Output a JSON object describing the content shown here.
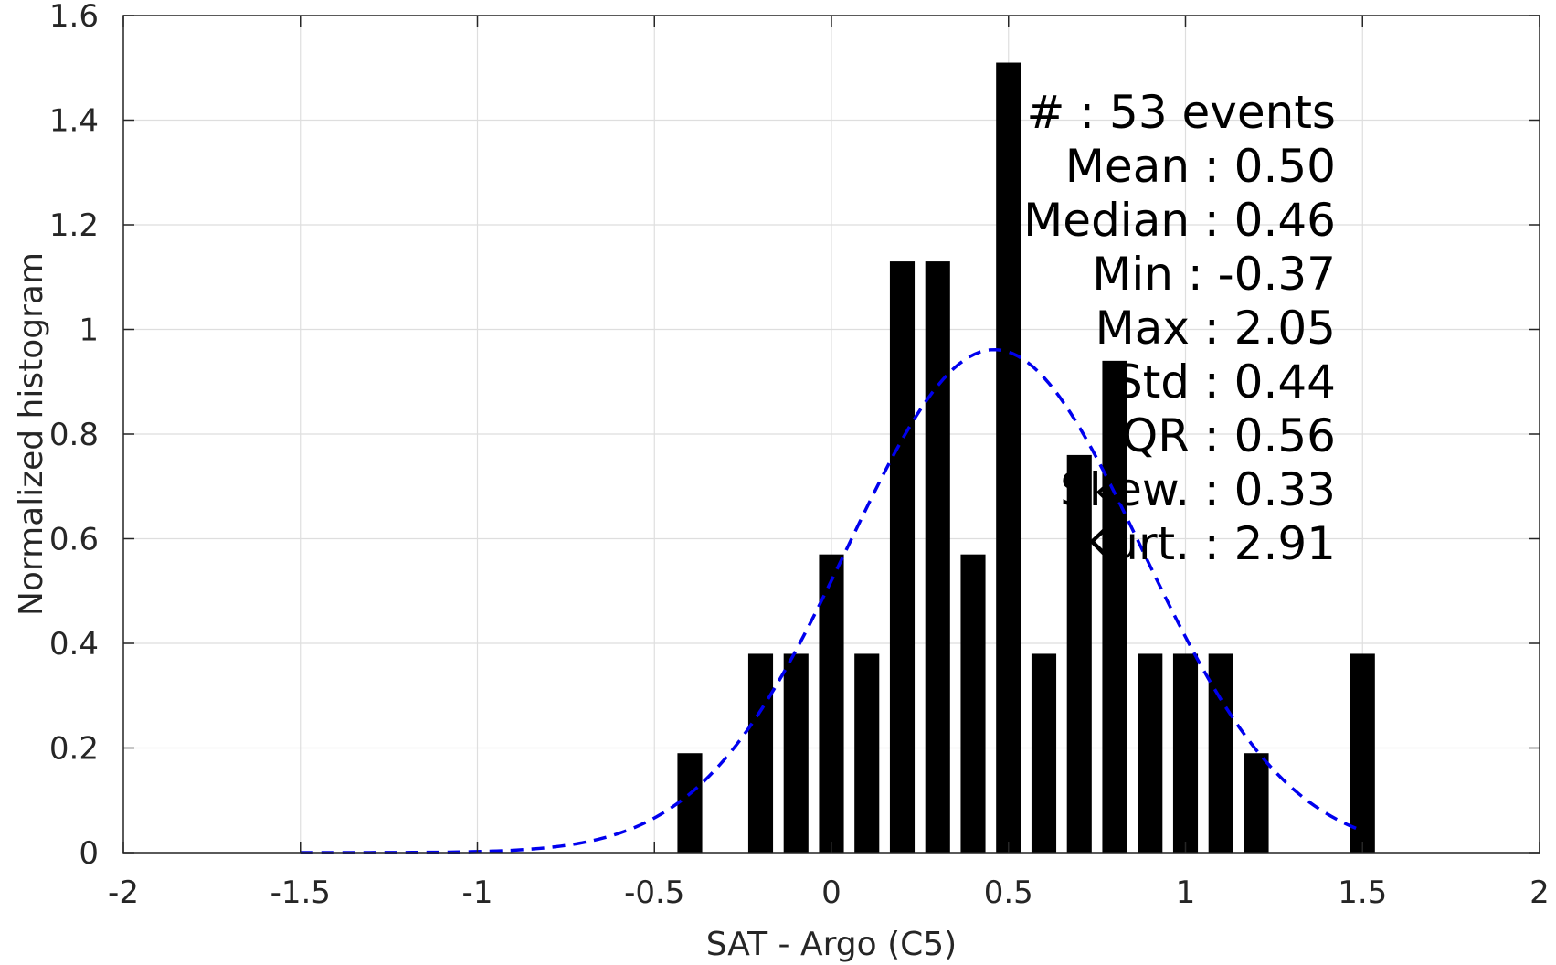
{
  "chart_data": {
    "type": "bar",
    "xlabel": "SAT - Argo (C5)",
    "ylabel": "Normalized histogram",
    "xlim": [
      -2,
      2
    ],
    "ylim": [
      0,
      1.6
    ],
    "xticks": [
      -2,
      -1.5,
      -1,
      -0.5,
      0,
      0.5,
      1,
      1.5,
      2
    ],
    "xtick_labels": [
      "-2",
      "-1.5",
      "-1",
      "-0.5",
      "0",
      "0.5",
      "1",
      "1.5",
      "2"
    ],
    "yticks": [
      0,
      0.2,
      0.4,
      0.6,
      0.8,
      1,
      1.2,
      1.4,
      1.6
    ],
    "ytick_labels": [
      "0",
      "0.2",
      "0.4",
      "0.6",
      "0.8",
      "1",
      "1.2",
      "1.4",
      "1.6"
    ],
    "grid": true,
    "bar_width": 0.07,
    "bars": [
      {
        "x": -0.4,
        "y": 0.19
      },
      {
        "x": -0.2,
        "y": 0.38
      },
      {
        "x": -0.1,
        "y": 0.38
      },
      {
        "x": 0.0,
        "y": 0.57
      },
      {
        "x": 0.1,
        "y": 0.38
      },
      {
        "x": 0.2,
        "y": 1.13
      },
      {
        "x": 0.3,
        "y": 1.13
      },
      {
        "x": 0.4,
        "y": 0.57
      },
      {
        "x": 0.5,
        "y": 1.51
      },
      {
        "x": 0.6,
        "y": 0.38
      },
      {
        "x": 0.7,
        "y": 0.76
      },
      {
        "x": 0.8,
        "y": 0.94
      },
      {
        "x": 0.9,
        "y": 0.38
      },
      {
        "x": 1.0,
        "y": 0.38
      },
      {
        "x": 1.1,
        "y": 0.38
      },
      {
        "x": 1.2,
        "y": 0.19
      },
      {
        "x": 1.5,
        "y": 0.38
      }
    ],
    "bar_color": "#000000",
    "fit_curve": {
      "style": "dashed",
      "color": "#0000ee",
      "mean": 0.46,
      "std": 0.415,
      "scale": 1.0,
      "x_range": [
        -1.5,
        1.5
      ]
    },
    "stats": [
      {
        "label": "#  : 53 events"
      },
      {
        "label": "Mean : 0.50"
      },
      {
        "label": "Median : 0.46"
      },
      {
        "label": "Min : -0.37"
      },
      {
        "label": "Max : 2.05"
      },
      {
        "label": "Std : 0.44"
      },
      {
        "label": "IQR : 0.56"
      },
      {
        "label": "Skew. : 0.33"
      },
      {
        "label": "Kurt. : 2.91"
      }
    ]
  }
}
